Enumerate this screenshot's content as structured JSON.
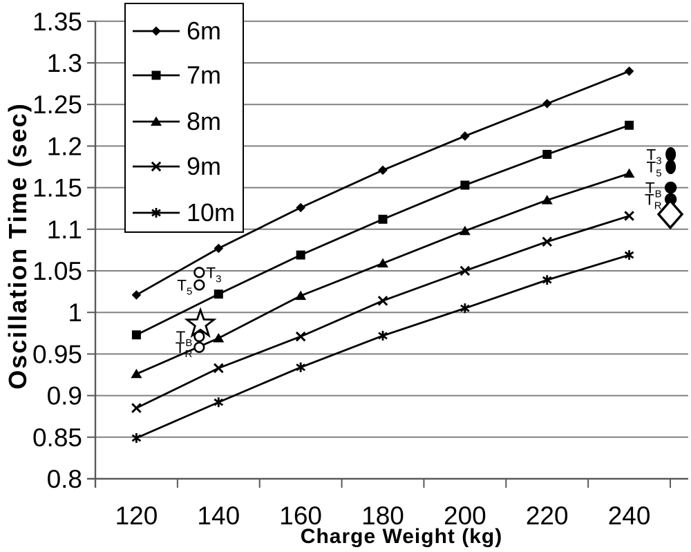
{
  "chart_data": {
    "type": "line",
    "title": "",
    "xlabel": "Charge Weight (kg)",
    "ylabel": "Oscillation Time (sec)",
    "xlim": [
      110,
      250
    ],
    "ylim": [
      0.8,
      1.35
    ],
    "x_tick_step": 20,
    "grid": "horizontal",
    "legend_position": "top-left",
    "categories": [
      120,
      140,
      160,
      180,
      200,
      220,
      240
    ],
    "x_tick_labels": [
      "120",
      "140",
      "160",
      "180",
      "200",
      "220",
      "240"
    ],
    "y_ticks": [
      0.8,
      0.85,
      0.9,
      0.95,
      1,
      1.05,
      1.1,
      1.15,
      1.2,
      1.25,
      1.3,
      1.35
    ],
    "y_tick_labels": [
      "0.8",
      "0.85",
      "0.9",
      "0.95",
      "1",
      "1.05",
      "1.1",
      "1.15",
      "1.2",
      "1.25",
      "1.3",
      "1.35"
    ],
    "series": [
      {
        "name": "6m",
        "marker": "diamond-filled",
        "values": [
          1.021,
          1.077,
          1.126,
          1.171,
          1.212,
          1.251,
          1.29
        ]
      },
      {
        "name": "7m",
        "marker": "square-filled",
        "values": [
          0.973,
          1.022,
          1.069,
          1.112,
          1.153,
          1.19,
          1.225
        ]
      },
      {
        "name": "8m",
        "marker": "triangle-filled",
        "values": [
          0.926,
          0.969,
          1.02,
          1.059,
          1.098,
          1.135,
          1.167
        ]
      },
      {
        "name": "9m",
        "marker": "x",
        "values": [
          0.885,
          0.933,
          0.971,
          1.014,
          1.05,
          1.085,
          1.116
        ]
      },
      {
        "name": "10m",
        "marker": "asterisk",
        "values": [
          0.849,
          0.892,
          0.934,
          0.972,
          1.005,
          1.039,
          1.069
        ]
      }
    ],
    "annotations": [
      {
        "name": "annotation-t3-left",
        "label": "T",
        "sub": "3",
        "marker": "circle-open",
        "x": 135.3,
        "y": 1.048,
        "label_side": "right"
      },
      {
        "name": "annotation-t5-left",
        "label": "T",
        "sub": "5",
        "marker": "circle-open",
        "x": 135.3,
        "y": 1.033,
        "label_side": "left"
      },
      {
        "name": "annotation-star",
        "label": "",
        "sub": "",
        "marker": "star-open",
        "x": 135.6,
        "y": 0.986,
        "label_side": "none"
      },
      {
        "name": "annotation-tb-left",
        "label": "T",
        "sub": "B",
        "marker": "circle-open",
        "x": 135.3,
        "y": 0.971,
        "label_side": "left"
      },
      {
        "name": "annotation-tr-left",
        "label": "T",
        "sub": "R",
        "marker": "circle-open",
        "x": 135.3,
        "y": 0.958,
        "label_side": "left"
      },
      {
        "name": "annotation-t3-right",
        "label": "T",
        "sub": "3",
        "marker": "ellipse-filled",
        "x": 250.1,
        "y": 1.19,
        "label_side": "left"
      },
      {
        "name": "annotation-t5-right",
        "label": "T",
        "sub": "5",
        "marker": "ellipse-filled",
        "x": 250.1,
        "y": 1.175,
        "label_side": "left"
      },
      {
        "name": "annotation-tb-right",
        "label": "T",
        "sub": "B",
        "marker": "circle-filled",
        "x": 250.1,
        "y": 1.15,
        "label_side": "left"
      },
      {
        "name": "annotation-tr-right",
        "label": "T",
        "sub": "R",
        "marker": "circle-filled",
        "x": 250.1,
        "y": 1.136,
        "label_side": "left"
      },
      {
        "name": "annotation-diamond-right",
        "label": "",
        "sub": "",
        "marker": "diamond-open",
        "x": 250.0,
        "y": 1.118,
        "label_side": "none"
      }
    ],
    "colors": {
      "series_line": "#000000",
      "marker": "#000000",
      "gridline": "#808080",
      "axis": "#595959",
      "text": "#000000",
      "background": "#ffffff"
    }
  }
}
